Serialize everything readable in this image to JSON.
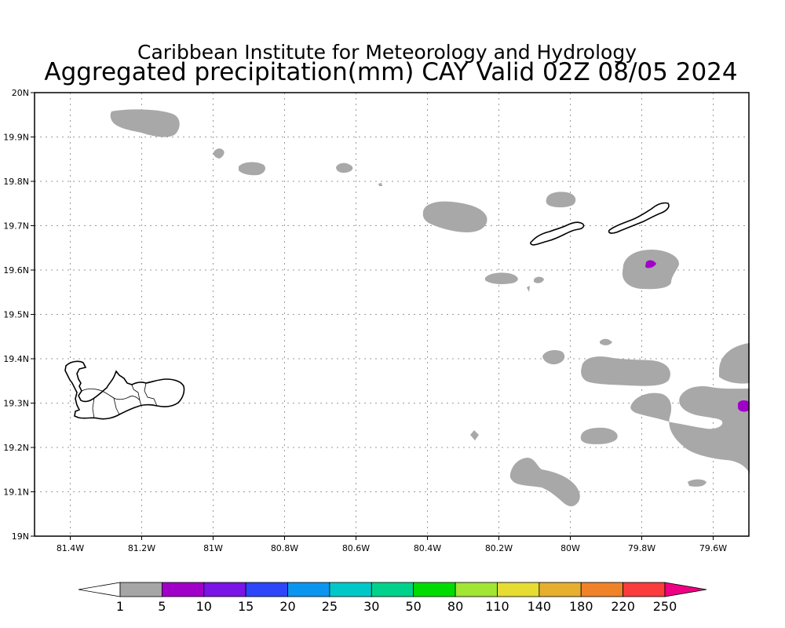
{
  "title": {
    "line1": "Caribbean Institute for Meteorology and Hydrology",
    "line2": "Aggregated precipitation(mm) CAY Valid 02Z 08/05 2024"
  },
  "map": {
    "lon_range": [
      -81.5,
      -79.5
    ],
    "lat_range": [
      19.0,
      20.0
    ],
    "lon_ticks": [
      {
        "value": -81.4,
        "label": "81.4W"
      },
      {
        "value": -81.2,
        "label": "81.2W"
      },
      {
        "value": -81.0,
        "label": "81W"
      },
      {
        "value": -80.8,
        "label": "80.8W"
      },
      {
        "value": -80.6,
        "label": "80.6W"
      },
      {
        "value": -80.4,
        "label": "80.4W"
      },
      {
        "value": -80.2,
        "label": "80.2W"
      },
      {
        "value": -80.0,
        "label": "80W"
      },
      {
        "value": -79.8,
        "label": "79.8W"
      },
      {
        "value": -79.6,
        "label": "79.6W"
      }
    ],
    "lat_ticks": [
      {
        "value": 19.0,
        "label": "19N"
      },
      {
        "value": 19.1,
        "label": "19.1N"
      },
      {
        "value": 19.2,
        "label": "19.2N"
      },
      {
        "value": 19.3,
        "label": "19.3N"
      },
      {
        "value": 19.4,
        "label": "19.4N"
      },
      {
        "value": 19.5,
        "label": "19.5N"
      },
      {
        "value": 19.6,
        "label": "19.6N"
      },
      {
        "value": 19.7,
        "label": "19.7N"
      },
      {
        "value": 19.8,
        "label": "19.8N"
      },
      {
        "value": 19.9,
        "label": "19.9N"
      },
      {
        "value": 20.0,
        "label": "20N"
      }
    ],
    "grid": true,
    "islands": [
      "Grand Cayman",
      "Little Cayman",
      "Cayman Brac"
    ]
  },
  "colorbar": {
    "levels": [
      "1",
      "5",
      "10",
      "15",
      "20",
      "25",
      "30",
      "50",
      "80",
      "110",
      "140",
      "180",
      "220",
      "250"
    ],
    "colors": [
      "#a6a6a6",
      "#a000c8",
      "#7b14e6",
      "#2d46fa",
      "#0a96f0",
      "#00c8c8",
      "#00d28c",
      "#00dc00",
      "#a0e632",
      "#e6dc32",
      "#e6af2d",
      "#f08228",
      "#fa3c3c"
    ],
    "under_color": "#ffffff",
    "over_color": "#f00082"
  },
  "legend_colors": {
    "light_rain": "#a8a8a8",
    "heavy_rain": "#a000c8"
  }
}
